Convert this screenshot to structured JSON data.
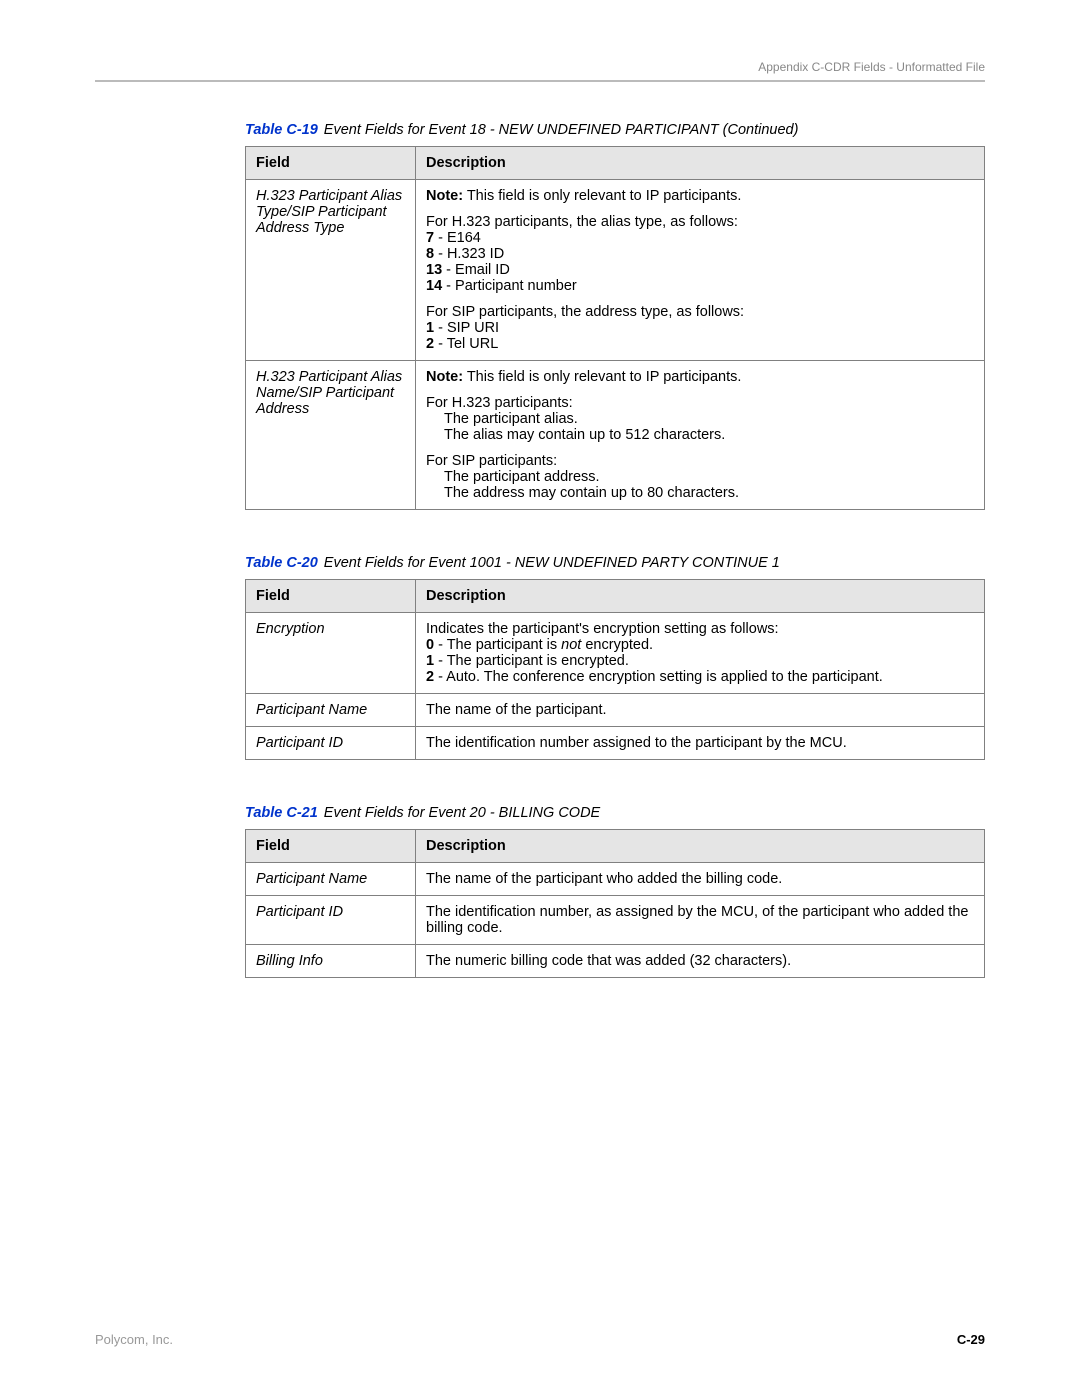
{
  "header": {
    "right_text": "Appendix C-CDR Fields - Unformatted File"
  },
  "tables": [
    {
      "caption_num": "Table C-19",
      "caption_title": "Event Fields for Event 18 - NEW UNDEFINED PARTICIPANT (Continued)",
      "columns": [
        "Field",
        "Description"
      ],
      "rows": [
        {
          "field": "H.323 Participant Alias Type/SIP Participant Address Type",
          "desc": [
            {
              "type": "note",
              "bold": "Note:",
              "text": " This field is only relevant to IP participants."
            },
            {
              "type": "line",
              "text": "For H.323 participants, the alias type, as follows:"
            },
            {
              "type": "kv",
              "k": "7",
              "v": " - E164"
            },
            {
              "type": "kv",
              "k": "8",
              "v": " - H.323 ID"
            },
            {
              "type": "kv",
              "k": "13",
              "v": " - Email ID"
            },
            {
              "type": "kv",
              "k": "14",
              "v": " - Participant number"
            },
            {
              "type": "spacer"
            },
            {
              "type": "line",
              "text": "For SIP participants, the address type, as follows:"
            },
            {
              "type": "kv",
              "k": "1",
              "v": " - SIP URI"
            },
            {
              "type": "kv",
              "k": "2",
              "v": " - Tel URL"
            }
          ]
        },
        {
          "field": "H.323 Participant Alias Name/SIP Participant Address",
          "desc": [
            {
              "type": "note",
              "bold": "Note:",
              "text": " This field is only relevant to IP participants."
            },
            {
              "type": "group",
              "head": "For H.323 participants:",
              "lines": [
                "The participant alias.",
                "The alias may contain up to 512 characters."
              ]
            },
            {
              "type": "group",
              "head": "For SIP participants:",
              "lines": [
                "The participant address.",
                "The address may contain up to 80 characters."
              ]
            }
          ]
        }
      ]
    },
    {
      "caption_num": "Table C-20",
      "caption_title": "Event Fields for Event 1001 - NEW UNDEFINED PARTY CONTINUE 1",
      "columns": [
        "Field",
        "Description"
      ],
      "rows": [
        {
          "field": "Encryption",
          "desc": [
            {
              "type": "line",
              "text": "Indicates the participant's encryption setting as follows:"
            },
            {
              "type": "kvi",
              "k": "0",
              "pre": " - The participant is ",
              "i": "not",
              "post": " encrypted."
            },
            {
              "type": "kv",
              "k": "1",
              "v": " - The participant is encrypted."
            },
            {
              "type": "kv",
              "k": "2",
              "v": " - Auto. The conference encryption setting is applied to the participant."
            }
          ]
        },
        {
          "field": "Participant Name",
          "desc": [
            {
              "type": "line",
              "text": "The name of the participant."
            }
          ]
        },
        {
          "field": "Participant ID",
          "desc": [
            {
              "type": "line",
              "text": "The identification number assigned to the participant by the MCU."
            }
          ]
        }
      ]
    },
    {
      "caption_num": "Table C-21",
      "caption_title": "Event Fields for Event 20 - BILLING CODE",
      "columns": [
        "Field",
        "Description"
      ],
      "rows": [
        {
          "field": "Participant Name",
          "desc": [
            {
              "type": "line",
              "text": "The name of the participant who added the billing code."
            }
          ]
        },
        {
          "field": "Participant ID",
          "desc": [
            {
              "type": "line",
              "text": "The identification number, as assigned by the MCU, of the participant who added the billing code."
            }
          ]
        },
        {
          "field": "Billing Info",
          "desc": [
            {
              "type": "line",
              "text": "The numeric billing code that was added (32 characters)."
            }
          ]
        }
      ]
    }
  ],
  "footer": {
    "company": "Polycom, Inc.",
    "pagenum": "C-29"
  }
}
